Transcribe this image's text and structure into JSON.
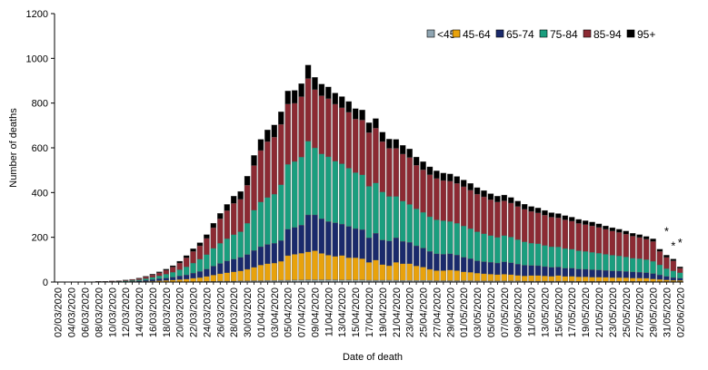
{
  "chart_data": {
    "type": "bar",
    "stacked": true,
    "title": "",
    "xlabel": "Date of death",
    "ylabel": "Number of deaths",
    "ylim": [
      0,
      1200
    ],
    "yticks": [
      0,
      200,
      400,
      600,
      800,
      1000,
      1200
    ],
    "grid": false,
    "legend_position": "top-right",
    "categories": [
      "02/03/2020",
      "03/03/2020",
      "04/03/2020",
      "05/03/2020",
      "06/03/2020",
      "07/03/2020",
      "08/03/2020",
      "09/03/2020",
      "10/03/2020",
      "11/03/2020",
      "12/03/2020",
      "13/03/2020",
      "14/03/2020",
      "15/03/2020",
      "16/03/2020",
      "17/03/2020",
      "18/03/2020",
      "19/03/2020",
      "20/03/2020",
      "21/03/2020",
      "22/03/2020",
      "23/03/2020",
      "24/03/2020",
      "25/03/2020",
      "26/03/2020",
      "27/03/2020",
      "28/03/2020",
      "29/03/2020",
      "30/03/2020",
      "31/03/2020",
      "01/04/2020",
      "02/04/2020",
      "03/04/2020",
      "04/04/2020",
      "05/04/2020",
      "06/04/2020",
      "07/04/2020",
      "08/04/2020",
      "09/04/2020",
      "10/04/2020",
      "11/04/2020",
      "12/04/2020",
      "13/04/2020",
      "14/04/2020",
      "15/04/2020",
      "16/04/2020",
      "17/04/2020",
      "18/04/2020",
      "19/04/2020",
      "20/04/2020",
      "21/04/2020",
      "22/04/2020",
      "23/04/2020",
      "24/04/2020",
      "25/04/2020",
      "26/04/2020",
      "27/04/2020",
      "28/04/2020",
      "29/04/2020",
      "30/04/2020",
      "01/05/2020",
      "02/05/2020",
      "03/05/2020",
      "04/05/2020",
      "05/05/2020",
      "06/05/2020",
      "07/05/2020",
      "08/05/2020",
      "09/05/2020",
      "10/05/2020",
      "11/05/2020",
      "12/05/2020",
      "13/05/2020",
      "14/05/2020",
      "15/05/2020",
      "16/05/2020",
      "17/05/2020",
      "18/05/2020",
      "19/05/2020",
      "20/05/2020",
      "21/05/2020",
      "22/05/2020",
      "23/05/2020",
      "24/05/2020",
      "25/05/2020",
      "26/05/2020",
      "27/05/2020",
      "28/05/2020",
      "29/05/2020",
      "30/05/2020",
      "31/05/2020",
      "01/06/2020",
      "02/06/2020"
    ],
    "tick_every": 2,
    "series": [
      {
        "name": "<45",
        "color": "#8fa5b2",
        "values": [
          0,
          0,
          0,
          0,
          0,
          0,
          0,
          0,
          0,
          0,
          0,
          0,
          0,
          0,
          0,
          1,
          1,
          1,
          1,
          1,
          2,
          2,
          3,
          3,
          4,
          4,
          4,
          5,
          5,
          6,
          6,
          7,
          7,
          8,
          8,
          9,
          9,
          10,
          10,
          10,
          10,
          10,
          9,
          9,
          9,
          9,
          8,
          8,
          8,
          8,
          8,
          7,
          7,
          7,
          7,
          7,
          6,
          6,
          6,
          6,
          6,
          6,
          5,
          5,
          5,
          5,
          5,
          5,
          5,
          4,
          4,
          4,
          4,
          4,
          4,
          4,
          4,
          3,
          3,
          3,
          3,
          3,
          3,
          3,
          3,
          3,
          3,
          3,
          2,
          2,
          2,
          2,
          2
        ]
      },
      {
        "name": "45-64",
        "color": "#e8a20c",
        "values": [
          0,
          0,
          0,
          0,
          0,
          0,
          0,
          0,
          0,
          1,
          1,
          1,
          2,
          3,
          4,
          5,
          6,
          8,
          10,
          12,
          15,
          18,
          22,
          28,
          33,
          38,
          42,
          45,
          52,
          60,
          70,
          75,
          78,
          85,
          110,
          115,
          120,
          125,
          130,
          118,
          110,
          105,
          110,
          100,
          100,
          95,
          80,
          90,
          70,
          65,
          80,
          75,
          75,
          65,
          60,
          50,
          45,
          45,
          48,
          45,
          40,
          38,
          35,
          32,
          30,
          28,
          30,
          28,
          25,
          23,
          25,
          25,
          23,
          22,
          25,
          21,
          22,
          20,
          20,
          19,
          19,
          18,
          17,
          17,
          16,
          15,
          15,
          14,
          12,
          10,
          8,
          6,
          5
        ]
      },
      {
        "name": "65-74",
        "color": "#1a2a6c",
        "values": [
          0,
          0,
          0,
          0,
          0,
          0,
          1,
          1,
          1,
          1,
          1,
          2,
          3,
          5,
          7,
          9,
          11,
          13,
          16,
          19,
          23,
          27,
          33,
          40,
          46,
          52,
          56,
          60,
          66,
          75,
          82,
          86,
          88,
          92,
          118,
          120,
          125,
          165,
          160,
          155,
          150,
          150,
          140,
          140,
          130,
          130,
          110,
          120,
          110,
          110,
          110,
          100,
          95,
          90,
          85,
          80,
          75,
          73,
          72,
          70,
          65,
          60,
          55,
          54,
          53,
          52,
          55,
          53,
          50,
          48,
          45,
          44,
          42,
          40,
          38,
          37,
          36,
          35,
          34,
          33,
          32,
          31,
          30,
          29,
          28,
          27,
          26,
          25,
          24,
          20,
          15,
          12,
          10
        ]
      },
      {
        "name": "75-84",
        "color": "#1a9e7e",
        "values": [
          0,
          0,
          0,
          0,
          0,
          0,
          1,
          1,
          2,
          2,
          3,
          4,
          5,
          7,
          10,
          13,
          17,
          22,
          28,
          36,
          45,
          55,
          65,
          80,
          90,
          100,
          110,
          115,
          140,
          180,
          200,
          210,
          220,
          250,
          290,
          295,
          305,
          330,
          300,
          290,
          290,
          275,
          270,
          260,
          250,
          245,
          230,
          225,
          215,
          200,
          185,
          180,
          170,
          165,
          160,
          155,
          152,
          150,
          145,
          142,
          140,
          135,
          130,
          125,
          120,
          115,
          118,
          115,
          110,
          105,
          100,
          98,
          95,
          92,
          90,
          88,
          85,
          82,
          80,
          78,
          75,
          72,
          70,
          68,
          65,
          62,
          60,
          58,
          55,
          45,
          35,
          30,
          25
        ]
      },
      {
        "name": "85-94",
        "color": "#8c2a33",
        "values": [
          0,
          0,
          0,
          0,
          0,
          0,
          1,
          1,
          2,
          2,
          3,
          4,
          6,
          8,
          11,
          14,
          18,
          23,
          30,
          40,
          52,
          60,
          72,
          92,
          110,
          125,
          140,
          145,
          170,
          200,
          230,
          250,
          255,
          270,
          270,
          260,
          270,
          280,
          260,
          260,
          260,
          255,
          250,
          250,
          240,
          245,
          240,
          245,
          225,
          215,
          215,
          210,
          210,
          195,
          190,
          188,
          185,
          180,
          180,
          178,
          175,
          172,
          168,
          165,
          160,
          158,
          155,
          152,
          148,
          145,
          142,
          138,
          135,
          132,
          130,
          128,
          125,
          122,
          120,
          118,
          115,
          112,
          108,
          105,
          102,
          98,
          95,
          92,
          88,
          60,
          50,
          45,
          20
        ]
      },
      {
        "name": "95+",
        "color": "#000000",
        "values": [
          0,
          0,
          0,
          0,
          0,
          0,
          0,
          0,
          0,
          0,
          1,
          1,
          2,
          3,
          3,
          4,
          5,
          6,
          8,
          10,
          12,
          14,
          17,
          20,
          24,
          28,
          32,
          35,
          40,
          45,
          50,
          52,
          54,
          56,
          58,
          58,
          58,
          60,
          55,
          52,
          52,
          50,
          50,
          48,
          46,
          45,
          44,
          43,
          42,
          41,
          40,
          39,
          38,
          37,
          36,
          35,
          34,
          33,
          32,
          31,
          30,
          30,
          29,
          28,
          27,
          26,
          26,
          25,
          24,
          23,
          22,
          22,
          21,
          20,
          19,
          19,
          18,
          18,
          17,
          17,
          16,
          15,
          15,
          14,
          14,
          13,
          13,
          12,
          12,
          10,
          10,
          8,
          6
        ]
      }
    ],
    "annotations": [
      {
        "text": "*",
        "category_index": 90
      },
      {
        "text": "*",
        "category_index": 91
      },
      {
        "text": "*",
        "category_index": 92
      }
    ]
  }
}
